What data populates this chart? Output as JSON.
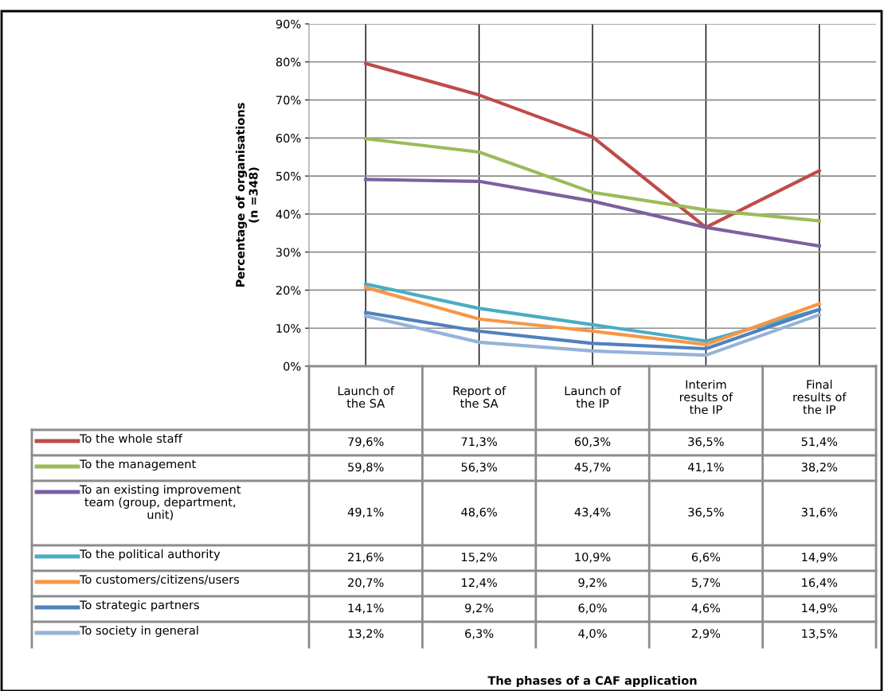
{
  "chart_data": {
    "type": "line",
    "categories": [
      "Launch of\nthe SA",
      "Report of\nthe SA",
      "Launch of\nthe IP",
      "Interim\nresults of\nthe IP",
      "Final\nresults of\nthe IP"
    ],
    "ylabel": "Percentage of organisations\n(n =348)",
    "annotations": [
      "The phases of a CAF application"
    ],
    "legend": "bottom left",
    "ylim": [
      0,
      90
    ],
    "yticks": [
      {
        "value": 0,
        "label": "0%"
      },
      {
        "value": 10,
        "label": "10%"
      },
      {
        "value": 20,
        "label": "20%"
      },
      {
        "value": 30,
        "label": "30%"
      },
      {
        "value": 40,
        "label": "40%"
      },
      {
        "value": 50,
        "label": "50%"
      },
      {
        "value": 60,
        "label": "60%"
      },
      {
        "value": 70,
        "label": "70%"
      },
      {
        "value": 80,
        "label": "80%"
      },
      {
        "value": 90,
        "label": "90%"
      }
    ],
    "grid": true,
    "marker": "none",
    "series": [
      {
        "name": "To the whole staff",
        "color": "#be4b48",
        "values": [
          79.6,
          71.3,
          60.3,
          36.5,
          51.4
        ],
        "value_labels": [
          "79,6%",
          "71,3%",
          "60,3%",
          "36,5%",
          "51,4%"
        ]
      },
      {
        "name": "To the management",
        "color": "#9bbb59",
        "values": [
          59.8,
          56.3,
          45.7,
          41.1,
          38.2
        ],
        "value_labels": [
          "59,8%",
          "56,3%",
          "45,7%",
          "41,1%",
          "38,2%"
        ]
      },
      {
        "name": "To an existing improvement\nteam (group, department,\nunit)",
        "color": "#7d60a0",
        "values": [
          49.1,
          48.6,
          43.4,
          36.5,
          31.6
        ],
        "value_labels": [
          "49,1%",
          "48,6%",
          "43,4%",
          "36,5%",
          "31,6%"
        ]
      },
      {
        "name": "To the political authority",
        "color": "#4bacc6",
        "values": [
          21.6,
          15.2,
          10.9,
          6.6,
          14.9
        ],
        "value_labels": [
          "21,6%",
          "15,2%",
          "10,9%",
          "6,6%",
          "14,9%"
        ]
      },
      {
        "name": "To customers/citizens/users",
        "color": "#f79646",
        "values": [
          20.7,
          12.4,
          9.2,
          5.7,
          16.4
        ],
        "value_labels": [
          "20,7%",
          "12,4%",
          "9,2%",
          "5,7%",
          "16,4%"
        ]
      },
      {
        "name": "To strategic partners",
        "color": "#4f81bd",
        "values": [
          14.1,
          9.2,
          6.0,
          4.6,
          14.9
        ],
        "value_labels": [
          "14,1%",
          "9,2%",
          "6,0%",
          "4,6%",
          "14,9%"
        ]
      },
      {
        "name": "To society in general",
        "color": "#95b3d7",
        "values": [
          13.2,
          6.3,
          4.0,
          2.9,
          13.5
        ],
        "value_labels": [
          "13,2%",
          "6,3%",
          "4,0%",
          "2,9%",
          "13,5%"
        ]
      }
    ]
  }
}
